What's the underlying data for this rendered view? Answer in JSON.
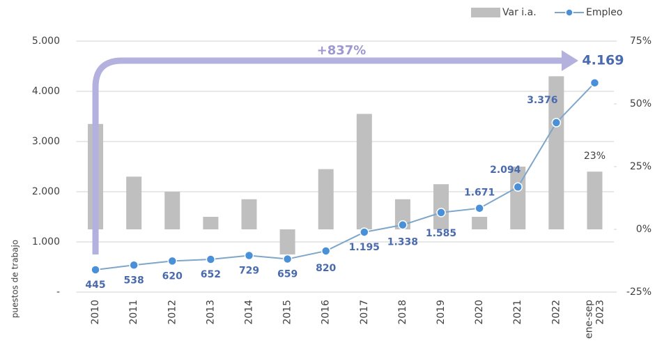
{
  "chart_data": {
    "type": "bar-line",
    "y_axis_label": "puestos de trabajo",
    "annotation": "+837%",
    "categories": [
      "2010",
      "2011",
      "2012",
      "2013",
      "2014",
      "2015",
      "2016",
      "2017",
      "2018",
      "2019",
      "2020",
      "2021",
      "2022",
      "ene-sep 2023"
    ],
    "series": [
      {
        "name": "Var i.a.",
        "type": "bar",
        "axis": "y2",
        "color": "#bfbfbf",
        "values": [
          42,
          21,
          15,
          5,
          12,
          -10,
          24,
          46,
          12,
          18,
          5,
          25,
          61,
          23
        ],
        "value_labels": [
          null,
          null,
          null,
          null,
          null,
          null,
          null,
          null,
          null,
          null,
          null,
          null,
          null,
          "23%"
        ]
      },
      {
        "name": "Empleo",
        "type": "line",
        "axis": "y",
        "color": "#7ea6c9",
        "marker_color": "#4a90d9",
        "values": [
          445,
          538,
          620,
          652,
          729,
          659,
          820,
          1195,
          1338,
          1585,
          1671,
          2094,
          3376,
          4169
        ],
        "value_labels": [
          "445",
          "538",
          "620",
          "652",
          "729",
          "659",
          "820",
          "1.195",
          "1.338",
          "1.585",
          "1.671",
          "2.094",
          "3.376",
          "4.169"
        ]
      }
    ],
    "ylim": [
      0,
      5000
    ],
    "yticks": [
      {
        "value": 0,
        "label": "-"
      },
      {
        "value": 1000,
        "label": "1.000"
      },
      {
        "value": 2000,
        "label": "2.000"
      },
      {
        "value": 3000,
        "label": "3.000"
      },
      {
        "value": 4000,
        "label": "4.000"
      },
      {
        "value": 5000,
        "label": "5.000"
      }
    ],
    "y2lim": [
      -25,
      75
    ],
    "y2ticks": [
      {
        "value": -25,
        "label": "-25%"
      },
      {
        "value": 0,
        "label": "0%"
      },
      {
        "value": 25,
        "label": "25%"
      },
      {
        "value": 50,
        "label": "50%"
      },
      {
        "value": 75,
        "label": "75%"
      }
    ],
    "grid": true,
    "legend": "top-right"
  }
}
